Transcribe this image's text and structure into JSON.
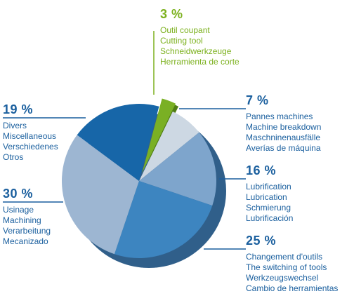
{
  "chart_data": {
    "type": "pie",
    "slices": [
      {
        "value": 3,
        "percent_label": "3 %",
        "labels": [
          "Outil coupant",
          "Cutting tool",
          "Schneidwerkzeuge",
          "Herramienta de corte"
        ],
        "color": "#7ab024",
        "exploded": true
      },
      {
        "value": 7,
        "percent_label": "7 %",
        "labels": [
          "Pannes machines",
          "Machine breakdown",
          "Maschninenausfälle",
          "Averías de máquina"
        ],
        "color": "#cdd8e3"
      },
      {
        "value": 16,
        "percent_label": "16 %",
        "labels": [
          "Lubrification",
          "Lubrication",
          "Schmierung",
          "Lubrificación"
        ],
        "color": "#7ea5cc"
      },
      {
        "value": 25,
        "percent_label": "25 %",
        "labels": [
          "Changement d'outils",
          "The switching of tools",
          "Werkzeugswechsel",
          "Cambio de herramientas"
        ],
        "color": "#3d85c0"
      },
      {
        "value": 30,
        "percent_label": "30 %",
        "labels": [
          "Usinage",
          "Machining",
          "Verarbeitung",
          "Mecanizado"
        ],
        "color": "#9db6d2"
      },
      {
        "value": 19,
        "percent_label": "19 %",
        "labels": [
          "Divers",
          "Miscellaneous",
          "Verschiedenes",
          "Otros"
        ],
        "color": "#1766a8"
      }
    ],
    "label_color": "#1a5f9e",
    "highlight_color": "#7cb11e",
    "side_color": "#305f8a"
  }
}
